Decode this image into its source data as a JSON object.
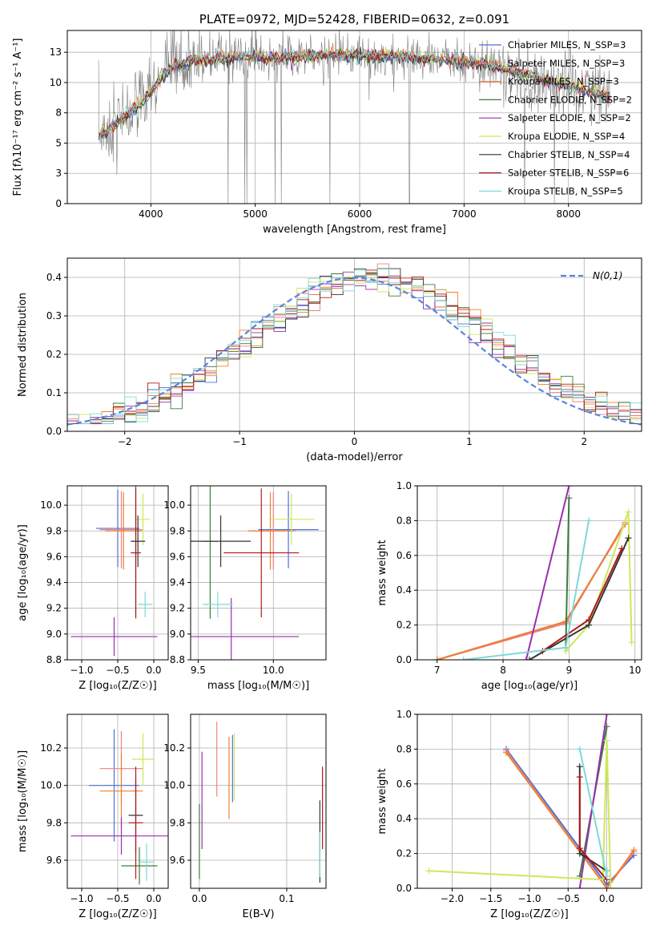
{
  "chart_data": [
    {
      "id": "spectrum",
      "type": "line",
      "title": "PLATE=0972, MJD=52428, FIBERID=0632, z=0.091",
      "xlabel": "wavelength [Angstrom, rest frame]",
      "ylabel": "Flux [fλ10⁻¹⁷ erg cm⁻² s⁻¹ A⁻¹]",
      "xlim": [
        3200,
        8700
      ],
      "ylim": [
        0,
        14.3
      ],
      "xticks": [
        4000,
        5000,
        6000,
        7000,
        8000
      ],
      "yticks": [
        0.0,
        2.5,
        5.0,
        7.5,
        10.0,
        12.5
      ],
      "legend_position": "top-right",
      "legend": [
        {
          "label": "Chabrier MILES, N_SSP=3",
          "color": "#4c72d0"
        },
        {
          "label": "Salpeter MILES, N_SSP=3",
          "color": "#f08080"
        },
        {
          "label": "Kroupa MILES, N_SSP=3",
          "color": "#f07f30"
        },
        {
          "label": "Chabrier ELODIE, N_SSP=2",
          "color": "#3a7d3a"
        },
        {
          "label": "Salpeter ELODIE, N_SSP=2",
          "color": "#9b2fae"
        },
        {
          "label": "Kroupa ELODIE, N_SSP=4",
          "color": "#cde85a"
        },
        {
          "label": "Chabrier STELIB, N_SSP=4",
          "color": "#333333"
        },
        {
          "label": "Salpeter STELIB, N_SSP=6",
          "color": "#b01818"
        },
        {
          "label": "Kroupa STELIB, N_SSP=5",
          "color": "#7fd8d8"
        }
      ],
      "data_color": "#808080",
      "continuum": [
        [
          3500,
          5.6
        ],
        [
          3700,
          6.8
        ],
        [
          3900,
          8.3
        ],
        [
          4000,
          9.3
        ],
        [
          4200,
          11.3
        ],
        [
          4400,
          11.8
        ],
        [
          4600,
          12.0
        ],
        [
          4800,
          12.1
        ],
        [
          5000,
          12.1
        ],
        [
          5200,
          12.0
        ],
        [
          5500,
          12.2
        ],
        [
          5800,
          12.3
        ],
        [
          6000,
          12.2
        ],
        [
          6300,
          12.2
        ],
        [
          6600,
          12.0
        ],
        [
          6900,
          11.8
        ],
        [
          7200,
          11.5
        ],
        [
          7500,
          10.9
        ],
        [
          7800,
          10.2
        ],
        [
          8100,
          9.5
        ],
        [
          8400,
          8.8
        ]
      ]
    },
    {
      "id": "residuals",
      "type": "line",
      "xlabel": "(data-model)/error",
      "ylabel": "Normed distribution",
      "xlim": [
        -2.5,
        2.5
      ],
      "ylim": [
        0,
        0.45
      ],
      "xticks": [
        -2,
        -1,
        0,
        1,
        2
      ],
      "yticks": [
        0.0,
        0.1,
        0.2,
        0.3,
        0.4
      ],
      "legend": [
        {
          "label": "N(0,1)",
          "color": "#5b85d8"
        }
      ],
      "legend_position": "top-right"
    },
    {
      "id": "age-vs-z",
      "type": "scatter",
      "xlabel": "Z [log₁₀(Z/Z☉)]",
      "ylabel": "age  [log₁₀(age/yr)]",
      "xlim": [
        -1.2,
        0.2
      ],
      "ylim": [
        8.8,
        10.15
      ],
      "xticks": [
        -1.0,
        -0.5,
        0.0
      ],
      "yticks": [
        8.8,
        9.0,
        9.2,
        9.4,
        9.6,
        9.8,
        10.0
      ],
      "points": [
        {
          "x": -0.5,
          "y": 9.82,
          "xe": 0.3,
          "ye": 0.3,
          "c": "#4c72d0"
        },
        {
          "x": -0.45,
          "y": 9.81,
          "xe": 0.3,
          "ye": 0.3,
          "c": "#f08080"
        },
        {
          "x": -0.42,
          "y": 9.8,
          "xe": 0.25,
          "ye": 0.3,
          "c": "#f07f30"
        },
        {
          "x": -0.25,
          "y": 9.72,
          "xe": 0.05,
          "ye": 0.6,
          "c": "#3a7d3a"
        },
        {
          "x": -0.55,
          "y": 8.98,
          "xe": 0.6,
          "ye": 0.15,
          "c": "#9b2fae"
        },
        {
          "x": -0.15,
          "y": 9.89,
          "xe": 0.1,
          "ye": 0.2,
          "c": "#cde85a"
        },
        {
          "x": -0.22,
          "y": 9.72,
          "xe": 0.1,
          "ye": 0.2,
          "c": "#333333"
        },
        {
          "x": -0.25,
          "y": 9.63,
          "xe": 0.07,
          "ye": 0.5,
          "c": "#b01818"
        },
        {
          "x": -0.12,
          "y": 9.23,
          "xe": 0.1,
          "ye": 0.1,
          "c": "#7fd8d8"
        }
      ]
    },
    {
      "id": "age-vs-mass",
      "type": "scatter",
      "xlabel": "mass [log₁₀(M/M☉)]",
      "ylabel": "",
      "xlim": [
        9.45,
        10.35
      ],
      "ylim": [
        8.8,
        10.15
      ],
      "xticks": [
        9.5,
        10.0
      ],
      "yticks": [
        8.8,
        9.0,
        9.2,
        9.4,
        9.6,
        9.8,
        10.0
      ],
      "points": [
        {
          "x": 10.1,
          "y": 9.81,
          "xe": 0.2,
          "ye": 0.3,
          "c": "#4c72d0"
        },
        {
          "x": 10.0,
          "y": 9.8,
          "xe": 0.15,
          "ye": 0.3,
          "c": "#f08080"
        },
        {
          "x": 9.98,
          "y": 9.8,
          "xe": 0.15,
          "ye": 0.3,
          "c": "#f07f30"
        },
        {
          "x": 9.58,
          "y": 9.72,
          "xe": 0.05,
          "ye": 0.6,
          "c": "#3a7d3a"
        },
        {
          "x": 9.72,
          "y": 8.98,
          "xe": 0.45,
          "ye": 0.3,
          "c": "#9b2fae"
        },
        {
          "x": 10.12,
          "y": 9.89,
          "xe": 0.15,
          "ye": 0.2,
          "c": "#cde85a"
        },
        {
          "x": 9.65,
          "y": 9.72,
          "xe": 0.2,
          "ye": 0.2,
          "c": "#333333"
        },
        {
          "x": 9.92,
          "y": 9.63,
          "xe": 0.25,
          "ye": 0.5,
          "c": "#b01818"
        },
        {
          "x": 9.63,
          "y": 9.23,
          "xe": 0.1,
          "ye": 0.1,
          "c": "#7fd8d8"
        }
      ]
    },
    {
      "id": "weight-vs-age",
      "type": "line",
      "xlabel": "age  [log₁₀(age/yr)]",
      "ylabel": "mass weight",
      "xlim": [
        6.7,
        10.1
      ],
      "ylim": [
        0,
        1
      ],
      "xticks": [
        7,
        8,
        9,
        10
      ],
      "yticks": [
        0.0,
        0.2,
        0.4,
        0.6,
        0.8,
        1.0
      ],
      "series": [
        {
          "c": "#4c72d0",
          "x": [
            7.0,
            8.95,
            9.85
          ],
          "y": [
            0.0,
            0.22,
            0.78
          ]
        },
        {
          "c": "#f08080",
          "x": [
            7.0,
            8.95,
            9.85
          ],
          "y": [
            0.0,
            0.21,
            0.79
          ]
        },
        {
          "c": "#f07f30",
          "x": [
            7.0,
            8.95,
            9.85
          ],
          "y": [
            0.0,
            0.22,
            0.78
          ]
        },
        {
          "c": "#3a7d3a",
          "x": [
            8.95,
            9.0
          ],
          "y": [
            0.07,
            0.93
          ]
        },
        {
          "c": "#9b2fae",
          "x": [
            8.35,
            9.0
          ],
          "y": [
            0.0,
            1.0
          ]
        },
        {
          "c": "#cde85a",
          "x": [
            8.95,
            9.3,
            9.9,
            9.95
          ],
          "y": [
            0.05,
            0.2,
            0.85,
            0.1
          ]
        },
        {
          "c": "#333333",
          "x": [
            8.4,
            9.3,
            9.9
          ],
          "y": [
            0.0,
            0.2,
            0.7
          ]
        },
        {
          "c": "#b01818",
          "x": [
            8.6,
            9.3,
            9.8
          ],
          "y": [
            0.05,
            0.23,
            0.64
          ]
        },
        {
          "c": "#7fd8d8",
          "x": [
            7.4,
            8.95,
            9.3
          ],
          "y": [
            0.0,
            0.07,
            0.8
          ]
        }
      ]
    },
    {
      "id": "mass-vs-z",
      "type": "scatter",
      "xlabel": "Z [log₁₀(Z/Z☉)]",
      "ylabel": "mass [log₁₀(M/M☉)]",
      "xlim": [
        -1.2,
        0.2
      ],
      "ylim": [
        9.45,
        10.38
      ],
      "xticks": [
        -1.0,
        -0.5,
        0.0
      ],
      "yticks": [
        9.6,
        9.8,
        10.0,
        10.2
      ],
      "points": [
        {
          "x": -0.55,
          "y": 10.0,
          "xe": 0.35,
          "ye": 0.3,
          "c": "#4c72d0"
        },
        {
          "x": -0.45,
          "y": 10.09,
          "xe": 0.3,
          "ye": 0.2,
          "c": "#f08080"
        },
        {
          "x": -0.45,
          "y": 9.97,
          "xe": 0.3,
          "ye": 0.2,
          "c": "#f07f30"
        },
        {
          "x": -0.2,
          "y": 9.57,
          "xe": 0.25,
          "ye": 0.1,
          "c": "#3a7d3a"
        },
        {
          "x": -0.45,
          "y": 9.73,
          "xe": 0.7,
          "ye": 0.1,
          "c": "#9b2fae"
        },
        {
          "x": -0.15,
          "y": 10.14,
          "xe": 0.15,
          "ye": 0.14,
          "c": "#cde85a"
        },
        {
          "x": -0.25,
          "y": 9.84,
          "xe": 0.1,
          "ye": 0.2,
          "c": "#333333"
        },
        {
          "x": -0.25,
          "y": 9.8,
          "xe": 0.1,
          "ye": 0.3,
          "c": "#b01818"
        },
        {
          "x": -0.1,
          "y": 9.59,
          "xe": 0.1,
          "ye": 0.1,
          "c": "#7fd8d8"
        }
      ]
    },
    {
      "id": "mass-vs-ebv",
      "type": "scatter",
      "xlabel": "E(B-V)",
      "ylabel": "",
      "xlim": [
        -0.01,
        0.145
      ],
      "ylim": [
        9.45,
        10.38
      ],
      "xticks": [
        0.0,
        0.1
      ],
      "yticks": [
        9.6,
        9.8,
        10.0,
        10.2
      ],
      "points": [
        {
          "x": 0.038,
          "y": 10.09,
          "xe": 0.0,
          "ye": 0.18,
          "c": "#4c72d0"
        },
        {
          "x": 0.02,
          "y": 10.14,
          "xe": 0.0,
          "ye": 0.2,
          "c": "#f08080"
        },
        {
          "x": 0.034,
          "y": 10.04,
          "xe": 0.0,
          "ye": 0.22,
          "c": "#f07f30"
        },
        {
          "x": 0.0,
          "y": 9.7,
          "xe": 0.0,
          "ye": 0.2,
          "c": "#3a7d3a"
        },
        {
          "x": 0.003,
          "y": 9.92,
          "xe": 0.0,
          "ye": 0.26,
          "c": "#9b2fae"
        },
        {
          "x": 0.04,
          "y": 10.1,
          "xe": 0.0,
          "ye": 0.18,
          "c": "#cde85a"
        },
        {
          "x": 0.138,
          "y": 9.7,
          "xe": 0.0,
          "ye": 0.22,
          "c": "#333333"
        },
        {
          "x": 0.141,
          "y": 9.88,
          "xe": 0.0,
          "ye": 0.22,
          "c": "#b01818"
        },
        {
          "x": 0.138,
          "y": 9.63,
          "xe": 0.0,
          "ye": 0.12,
          "c": "#7fd8d8"
        }
      ]
    },
    {
      "id": "weight-vs-z",
      "type": "line",
      "xlabel": "Z [log₁₀(Z/Z☉)]",
      "ylabel": "mass weight",
      "xlim": [
        -2.45,
        0.45
      ],
      "ylim": [
        0,
        1
      ],
      "xticks": [
        -2.0,
        -1.5,
        -1.0,
        -0.5,
        0.0
      ],
      "yticks": [
        0.0,
        0.2,
        0.4,
        0.6,
        0.8,
        1.0
      ],
      "series": [
        {
          "c": "#4c72d0",
          "x": [
            -1.3,
            0.0,
            0.35
          ],
          "y": [
            0.8,
            0.02,
            0.19
          ]
        },
        {
          "c": "#f08080",
          "x": [
            -1.3,
            0.0,
            0.35
          ],
          "y": [
            0.79,
            0.0,
            0.21
          ]
        },
        {
          "c": "#f07f30",
          "x": [
            -1.3,
            0.0,
            0.35
          ],
          "y": [
            0.78,
            0.0,
            0.22
          ]
        },
        {
          "c": "#3a7d3a",
          "x": [
            -0.35,
            0.0
          ],
          "y": [
            0.07,
            0.93
          ]
        },
        {
          "c": "#9b2fae",
          "x": [
            -0.35,
            0.0
          ],
          "y": [
            0.0,
            1.0
          ]
        },
        {
          "c": "#cde85a",
          "x": [
            -2.3,
            -0.05,
            0.0,
            0.05
          ],
          "y": [
            0.1,
            0.05,
            0.85,
            0.0
          ]
        },
        {
          "c": "#333333",
          "x": [
            -0.35,
            -0.35,
            0.0
          ],
          "y": [
            0.7,
            0.2,
            0.1
          ]
        },
        {
          "c": "#b01818",
          "x": [
            -0.35,
            -0.35,
            0.0
          ],
          "y": [
            0.64,
            0.23,
            0.05
          ]
        },
        {
          "c": "#7fd8d8",
          "x": [
            -0.35,
            0.0,
            0.0
          ],
          "y": [
            0.8,
            0.07,
            0.1
          ]
        }
      ]
    }
  ]
}
